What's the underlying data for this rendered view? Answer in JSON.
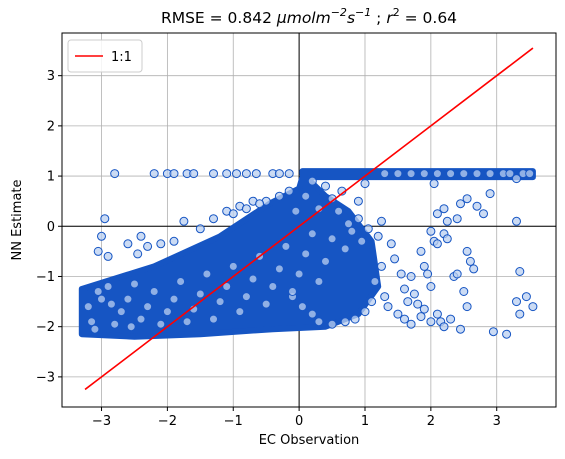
{
  "chart_data": {
    "type": "scatter",
    "title_parts": {
      "prefix": "RMSE = 0.842 ",
      "unit_main": "μmolm",
      "unit_exp1": "−2",
      "unit_s": "s",
      "unit_exp2": "−1",
      "sep": " ;  ",
      "r": "r",
      "r_exp": "2",
      "suffix": " = 0.64"
    },
    "xlabel": "EC Observation",
    "ylabel": "NN Estimate",
    "xlim": [
      -3.6,
      3.9
    ],
    "ylim": [
      -3.6,
      3.85
    ],
    "xticks": [
      -3,
      -2,
      -1,
      0,
      1,
      2,
      3
    ],
    "yticks": [
      -3,
      -2,
      -1,
      0,
      1,
      2,
      3
    ],
    "tick_labels_x": [
      "−3",
      "−2",
      "−1",
      "0",
      "1",
      "2",
      "3"
    ],
    "tick_labels_y": [
      "−3",
      "−2",
      "−1",
      "0",
      "1",
      "2",
      "3"
    ],
    "grid": true,
    "legend": {
      "placement": "top-left",
      "entries": [
        {
          "label": "1:1",
          "color": "#ff0000"
        }
      ]
    },
    "series": [
      {
        "kind": "scatter",
        "face_color": "#b9cff0",
        "edge_color": "#1655c3",
        "points": [
          [
            -2.8,
            1.05
          ],
          [
            -2.2,
            1.05
          ],
          [
            -2.0,
            1.05
          ],
          [
            -1.9,
            1.05
          ],
          [
            -1.7,
            1.05
          ],
          [
            -1.6,
            1.05
          ],
          [
            -1.3,
            1.05
          ],
          [
            -1.1,
            1.05
          ],
          [
            -0.95,
            1.05
          ],
          [
            -0.8,
            1.05
          ],
          [
            -0.65,
            1.05
          ],
          [
            -0.4,
            1.05
          ],
          [
            -0.3,
            1.05
          ],
          [
            -0.15,
            1.05
          ],
          [
            1.3,
            1.05
          ],
          [
            1.5,
            1.05
          ],
          [
            1.7,
            1.05
          ],
          [
            1.9,
            1.05
          ],
          [
            2.1,
            1.05
          ],
          [
            2.3,
            1.05
          ],
          [
            2.5,
            1.05
          ],
          [
            2.7,
            1.05
          ],
          [
            2.9,
            1.05
          ],
          [
            3.1,
            1.05
          ],
          [
            3.2,
            1.05
          ],
          [
            3.4,
            1.05
          ],
          [
            3.5,
            1.05
          ],
          [
            3.3,
            0.95
          ],
          [
            -2.95,
            0.15
          ],
          [
            -3.0,
            -0.2
          ],
          [
            -3.05,
            -0.5
          ],
          [
            -2.9,
            -0.6
          ],
          [
            -2.6,
            -0.35
          ],
          [
            -2.4,
            -0.2
          ],
          [
            -2.3,
            -0.4
          ],
          [
            -2.45,
            -0.55
          ],
          [
            -2.1,
            -0.35
          ],
          [
            -1.9,
            -0.3
          ],
          [
            -1.75,
            0.1
          ],
          [
            -1.5,
            -0.05
          ],
          [
            -1.3,
            0.15
          ],
          [
            -1.1,
            0.3
          ],
          [
            -0.9,
            0.4
          ],
          [
            -0.7,
            0.5
          ],
          [
            -0.5,
            0.5
          ],
          [
            -0.3,
            0.6
          ],
          [
            -0.15,
            0.7
          ],
          [
            -1.0,
            0.25
          ],
          [
            -0.8,
            0.35
          ],
          [
            -0.6,
            0.45
          ],
          [
            2.05,
            0.85
          ],
          [
            2.1,
            0.25
          ],
          [
            2.2,
            0.35
          ],
          [
            2.25,
            0.1
          ],
          [
            2.4,
            0.15
          ],
          [
            2.45,
            0.45
          ],
          [
            2.55,
            0.55
          ],
          [
            2.7,
            0.4
          ],
          [
            2.9,
            0.65
          ],
          [
            2.8,
            0.25
          ],
          [
            3.3,
            0.1
          ],
          [
            2.0,
            -0.1
          ],
          [
            1.85,
            -0.5
          ],
          [
            1.9,
            -0.8
          ],
          [
            1.95,
            -0.95
          ],
          [
            2.0,
            -1.2
          ],
          [
            2.05,
            -0.3
          ],
          [
            2.1,
            -0.35
          ],
          [
            2.2,
            -0.15
          ],
          [
            2.25,
            -0.25
          ],
          [
            2.35,
            -1.0
          ],
          [
            2.5,
            -1.3
          ],
          [
            2.55,
            -0.5
          ],
          [
            2.6,
            -0.7
          ],
          [
            2.65,
            -0.85
          ],
          [
            2.4,
            -0.95
          ],
          [
            3.35,
            -0.9
          ],
          [
            2.55,
            -1.6
          ],
          [
            2.95,
            -2.1
          ],
          [
            3.15,
            -2.15
          ],
          [
            3.3,
            -1.5
          ],
          [
            3.45,
            -1.4
          ],
          [
            3.55,
            -1.6
          ],
          [
            3.35,
            -1.75
          ],
          [
            1.6,
            -1.25
          ],
          [
            1.65,
            -1.5
          ],
          [
            1.4,
            -0.35
          ],
          [
            1.45,
            -0.65
          ],
          [
            1.55,
            -0.95
          ],
          [
            1.7,
            -1.0
          ],
          [
            1.75,
            -1.35
          ],
          [
            1.8,
            -1.55
          ],
          [
            1.3,
            -1.4
          ],
          [
            1.35,
            -1.6
          ],
          [
            1.5,
            -1.75
          ],
          [
            1.6,
            -1.85
          ],
          [
            1.7,
            -1.95
          ],
          [
            1.85,
            -1.8
          ],
          [
            1.9,
            -1.65
          ],
          [
            2.0,
            -1.9
          ],
          [
            2.1,
            -1.75
          ],
          [
            2.15,
            -1.9
          ],
          [
            2.2,
            -2.0
          ],
          [
            2.3,
            -1.85
          ],
          [
            2.45,
            -2.05
          ],
          [
            1.25,
            -0.8
          ],
          [
            1.15,
            -1.1
          ],
          [
            1.2,
            -0.2
          ],
          [
            1.05,
            -0.05
          ],
          [
            0.95,
            -0.3
          ],
          [
            1.1,
            -1.5
          ],
          [
            1.0,
            -1.7
          ],
          [
            0.85,
            -1.85
          ],
          [
            0.7,
            -1.9
          ],
          [
            0.5,
            -1.95
          ],
          [
            0.3,
            -1.9
          ],
          [
            0.2,
            -1.75
          ],
          [
            0.05,
            -1.6
          ],
          [
            -0.1,
            -1.4
          ],
          [
            1.25,
            0.1
          ],
          [
            0.9,
            0.15
          ],
          [
            0.75,
            0.05
          ],
          [
            -3.2,
            -1.6
          ],
          [
            -3.15,
            -1.9
          ],
          [
            -3.1,
            -2.05
          ],
          [
            -3.05,
            -1.3
          ],
          [
            -3.0,
            -1.45
          ],
          [
            -2.9,
            -1.2
          ],
          [
            -2.85,
            -1.55
          ],
          [
            -2.8,
            -1.95
          ],
          [
            -2.7,
            -1.7
          ],
          [
            -2.6,
            -1.45
          ],
          [
            -2.55,
            -2.0
          ],
          [
            -2.5,
            -1.15
          ],
          [
            -2.4,
            -1.85
          ],
          [
            -2.3,
            -1.6
          ],
          [
            -2.2,
            -1.3
          ],
          [
            -2.1,
            -1.95
          ],
          [
            -2.0,
            -1.7
          ],
          [
            -1.9,
            -1.45
          ],
          [
            -1.8,
            -1.1
          ],
          [
            -1.7,
            -1.9
          ],
          [
            -1.6,
            -1.65
          ],
          [
            -1.5,
            -1.35
          ],
          [
            -1.4,
            -0.95
          ],
          [
            -1.3,
            -1.85
          ],
          [
            -1.2,
            -1.5
          ],
          [
            -1.1,
            -1.2
          ],
          [
            -1.0,
            -0.8
          ],
          [
            -0.9,
            -1.7
          ],
          [
            -0.8,
            -1.4
          ],
          [
            -0.7,
            -1.05
          ],
          [
            -0.6,
            -0.6
          ],
          [
            -0.5,
            -1.55
          ],
          [
            -0.4,
            -1.2
          ],
          [
            -0.3,
            -0.85
          ],
          [
            -0.2,
            -0.4
          ],
          [
            -0.1,
            -1.3
          ],
          [
            0.0,
            -0.95
          ],
          [
            0.1,
            -0.55
          ],
          [
            0.2,
            -0.15
          ],
          [
            0.3,
            -1.1
          ],
          [
            0.4,
            -0.7
          ],
          [
            0.5,
            -0.25
          ],
          [
            0.6,
            0.3
          ],
          [
            0.7,
            -0.45
          ],
          [
            0.8,
            -0.1
          ],
          [
            0.9,
            0.5
          ],
          [
            1.0,
            0.85
          ],
          [
            0.4,
            0.8
          ],
          [
            0.2,
            0.9
          ],
          [
            0.1,
            0.6
          ],
          [
            -0.05,
            0.3
          ],
          [
            0.5,
            0.55
          ],
          [
            0.65,
            0.7
          ],
          [
            0.3,
            0.35
          ]
        ]
      },
      {
        "kind": "line",
        "name": "1:1",
        "color": "#ff0000",
        "x": [
          -3.25,
          3.55
        ],
        "y": [
          -3.25,
          3.55
        ]
      }
    ],
    "dense_regions": [
      {
        "polygon": [
          [
            -3.3,
            -2.15
          ],
          [
            -3.3,
            -1.25
          ],
          [
            -2.2,
            -0.8
          ],
          [
            -1.2,
            -0.2
          ],
          [
            -0.45,
            0.45
          ],
          [
            0.0,
            0.75
          ],
          [
            0.05,
            0.98
          ],
          [
            1.05,
            0.98
          ],
          [
            3.55,
            0.98
          ],
          [
            3.55,
            1.1
          ],
          [
            0.05,
            1.1
          ],
          [
            0.05,
            1.05
          ],
          [
            0.4,
            0.6
          ],
          [
            0.75,
            0.3
          ],
          [
            1.1,
            -0.3
          ],
          [
            1.2,
            -1.2
          ],
          [
            0.9,
            -1.75
          ],
          [
            0.4,
            -2.0
          ],
          [
            -0.4,
            -2.05
          ],
          [
            -1.5,
            -2.15
          ],
          [
            -2.5,
            -2.2
          ]
        ]
      }
    ]
  }
}
